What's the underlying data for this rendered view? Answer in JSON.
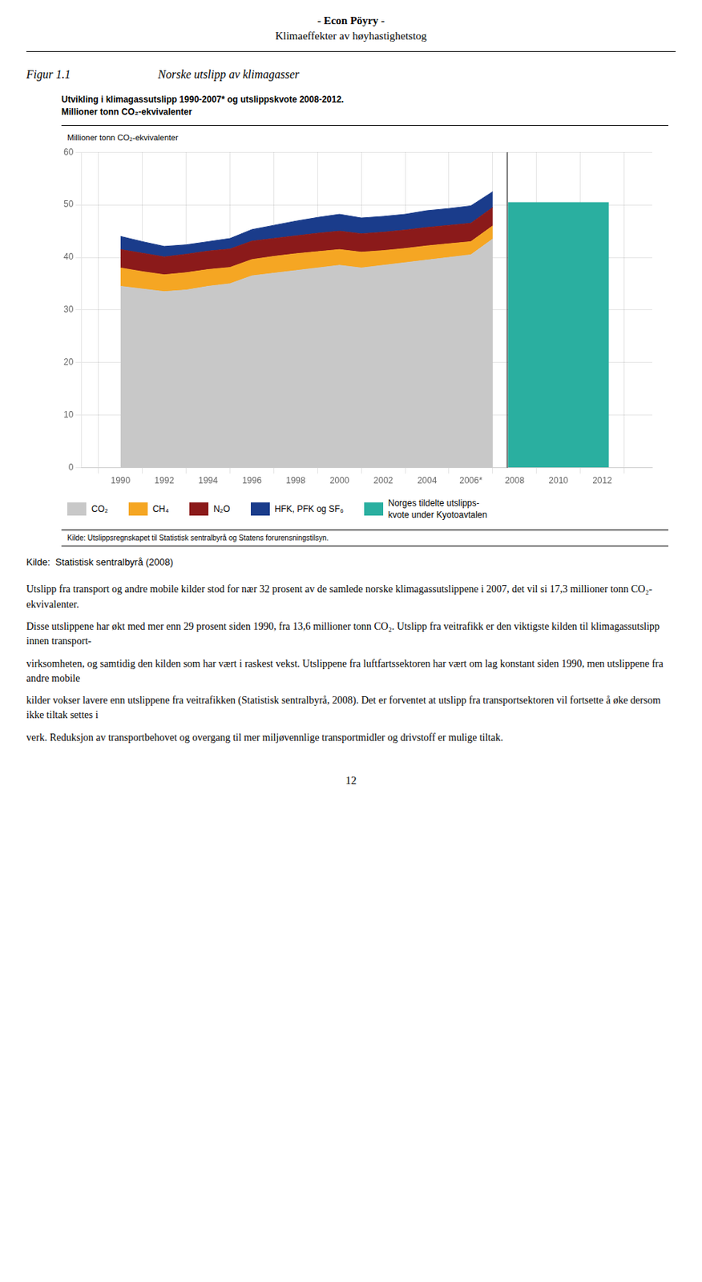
{
  "header": [
    "- Econ Pöyry -",
    "Klimaeffekter av høyhastighetstog"
  ],
  "figure_label": "Figur 1.1",
  "figure_title": "Norske utslipp av klimagasser",
  "chart_data": {
    "type": "area",
    "stacked": true,
    "title": "Utvikling i klimagassutslipp 1990-2007* og utslippskvote 2008-2012.",
    "subtitle": "Millioner tonn CO₂-ekvivalenter",
    "ylabel": "Millioner tonn CO₂-ekvivalenter",
    "x": [
      1990,
      1991,
      1992,
      1993,
      1994,
      1995,
      1996,
      1997,
      1998,
      1999,
      2000,
      2001,
      2002,
      2003,
      2004,
      2005,
      2006,
      2007
    ],
    "xlim": [
      1989.3,
      2013.2
    ],
    "xticks": [
      1990,
      1992,
      1994,
      1996,
      1998,
      2000,
      2002,
      2004,
      {
        "value": 2006,
        "label": "2006*"
      },
      2008,
      2010,
      2012
    ],
    "ylim": [
      0,
      60
    ],
    "yticks": [
      0,
      10,
      20,
      30,
      40,
      50,
      60
    ],
    "grid": true,
    "legend": "bottom",
    "series": [
      {
        "name": "CO₂",
        "color": "#c8c8c8",
        "values": [
          34.5,
          34.0,
          33.5,
          33.8,
          34.5,
          35.0,
          36.5,
          37.0,
          37.5,
          38.0,
          38.5,
          38.0,
          38.5,
          39.0,
          39.5,
          40.0,
          40.5,
          43.5
        ]
      },
      {
        "name": "CH₄",
        "color": "#f5a623",
        "values": [
          3.5,
          3.3,
          3.2,
          3.3,
          3.2,
          3.1,
          3.1,
          3.2,
          3.2,
          3.1,
          3.0,
          3.0,
          2.8,
          2.7,
          2.7,
          2.6,
          2.5,
          2.5
        ]
      },
      {
        "name": "N₂O",
        "color": "#8b1a1a",
        "values": [
          3.5,
          3.5,
          3.4,
          3.5,
          3.5,
          3.5,
          3.5,
          3.4,
          3.4,
          3.5,
          3.5,
          3.5,
          3.5,
          3.5,
          3.5,
          3.5,
          3.5,
          3.5
        ]
      },
      {
        "name": "HFK, PFK og SF₆",
        "color": "#1a3c8b",
        "values": [
          2.5,
          2.2,
          2.0,
          1.8,
          1.8,
          2.0,
          2.2,
          2.5,
          2.8,
          3.0,
          3.2,
          3.0,
          3.0,
          3.0,
          3.2,
          3.2,
          3.3,
          3.0
        ]
      },
      {
        "name": "Norges tildelte utslipps-\nkvote under Kyotoavtalen",
        "type": "bar",
        "color": "#2aafa0",
        "x": [
          2010
        ],
        "values": [
          50.5
        ]
      }
    ],
    "source": "Kilde: Utslippsregnskapet til Statistisk sentralbyrå og Statens forurensningstilsyn."
  },
  "source": "Kilde:  Statistisk sentralbyrå (2008)",
  "body_text": [
    "Utslipp fra transport og andre mobile kilder stod for nær 32 prosent av de samlede norske klimagassutslippene i 2007, det vil si 17,3 millioner tonn CO₂-ekvivalenter.",
    "Disse utslippene har økt med mer enn 29 prosent siden 1990, fra 13,6 millioner tonn CO₂. Utslipp fra veitrafikk er den viktigste kilden til klimagassutslipp innen transport-",
    "virksomheten, og samtidig den kilden som har vært i raskest vekst. Utslippene fra luftfartssektoren har vært om lag konstant siden 1990, men utslippene fra andre mobile",
    "kilder vokser lavere enn utslippene fra veitrafikken (Statistisk sentralbyrå, 2008). Det er forventet at utslipp fra transportsektoren vil fortsette å øke dersom ikke tiltak settes i",
    "verk. Reduksjon av transportbehovet og overgang til mer miljøvennlige transportmidler og drivstoff er mulige tiltak."
  ],
  "page_number": "12"
}
